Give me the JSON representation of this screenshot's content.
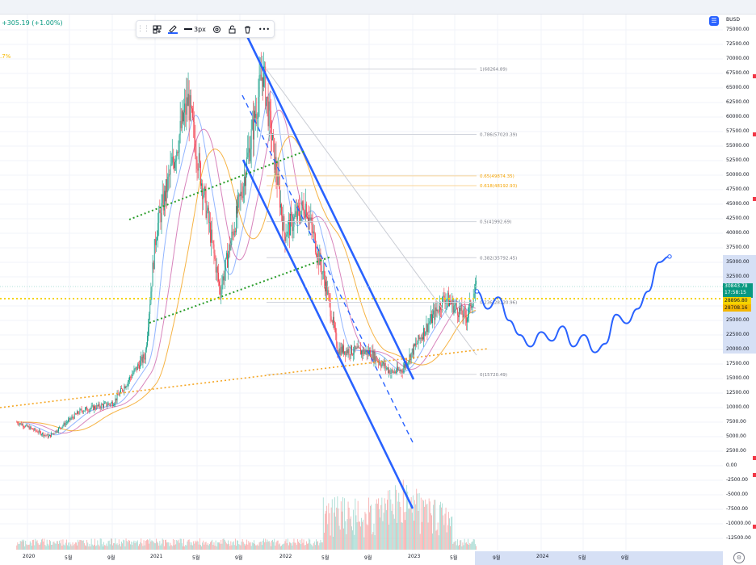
{
  "ticker": {
    "change": "+305.19 (+1.00%)",
    "pct_label": ".7%"
  },
  "toolbar": {
    "width_label": "3px",
    "items": [
      "drag-grip",
      "template-icon",
      "pen-color",
      "line-width",
      "settings",
      "lock",
      "trash",
      "more"
    ]
  },
  "price_axis": {
    "currency": "BUSD",
    "ticks": [
      "75000.00",
      "72500.00",
      "70000.00",
      "67500.00",
      "65000.00",
      "62500.00",
      "60000.00",
      "57500.00",
      "55000.00",
      "52500.00",
      "50000.00",
      "47500.00",
      "45000.00",
      "42500.00",
      "40000.00",
      "37500.00",
      "35000.00",
      "32500.00",
      "30000.00",
      "27500.00",
      "25000.00",
      "22500.00",
      "20000.00",
      "17500.00",
      "15000.00",
      "12500.00",
      "10000.00",
      "7500.00",
      "5000.00",
      "2500.00",
      "0.00",
      "-2500.00",
      "-5000.00",
      "-7500.00",
      "-10000.00",
      "-12500.00"
    ],
    "current_price": "30843.78",
    "countdown": "17:58:15",
    "badge1": "28896.80",
    "badge2": "28708.16"
  },
  "time_axis": {
    "labels": [
      {
        "text": "2020"
      },
      {
        "text": "5월"
      },
      {
        "text": "9월"
      },
      {
        "text": "2021"
      },
      {
        "text": "5월"
      },
      {
        "text": "9월"
      },
      {
        "text": "2022"
      },
      {
        "text": "5월"
      },
      {
        "text": "9월"
      },
      {
        "text": "2023"
      },
      {
        "text": "5월"
      },
      {
        "text": "9월"
      },
      {
        "text": "2024"
      },
      {
        "text": "5월"
      },
      {
        "text": "9월"
      }
    ]
  },
  "chart_data": {
    "type": "line",
    "title": "",
    "series": [
      {
        "name": "",
        "color": "#131722",
        "x": [
          "2019-12",
          "2020-03",
          "2020-06",
          "2020-09",
          "2020-12",
          "2021-01",
          "2021-04",
          "2021-07",
          "2021-09",
          "2021-11",
          "2022-01",
          "2022-03",
          "2022-05",
          "2022-06",
          "2022-09",
          "2022-11",
          "2022-12",
          "2023-02",
          "2023-04",
          "2023-06",
          "2023-07"
        ],
        "values": [
          7500,
          5000,
          9500,
          10800,
          19000,
          40000,
          63000,
          30000,
          47000,
          68000,
          40000,
          45000,
          30000,
          20000,
          19500,
          16000,
          16500,
          23000,
          29000,
          25500,
          30843
        ]
      }
    ],
    "fibonacci": [
      {
        "level": "1",
        "price": 68264.89,
        "label": "1(68264.89)",
        "color": "#787b86"
      },
      {
        "level": "0.786",
        "price": 57020.39,
        "label": "0.786(57020.39)",
        "color": "#787b86"
      },
      {
        "level": "0.65",
        "price": 49874.35,
        "label": "0.65(49874.35)",
        "color": "#f5a300"
      },
      {
        "level": "0.618",
        "price": 48192.93,
        "label": "0.618(48192.93)",
        "color": "#f5a300"
      },
      {
        "level": "0.5",
        "price": 41992.69,
        "label": "0.5(41992.69)",
        "color": "#787b86"
      },
      {
        "level": "0.382",
        "price": 35792.45,
        "label": "0.382(35792.45)",
        "color": "#787b86"
      },
      {
        "level": "0.236",
        "price": 28120.96,
        "label": "0.236(28120.96)",
        "color": "#787b86"
      },
      {
        "level": "0",
        "price": 15720.49,
        "label": "0(15720.49)",
        "color": "#787b86"
      }
    ],
    "ylim": [
      -12500,
      75000
    ],
    "projection": {
      "color": "#2962ff",
      "x": [
        "2023-07",
        "2023-08",
        "2023-09",
        "2023-10",
        "2023-11",
        "2023-12",
        "2024-01",
        "2024-02",
        "2024-03",
        "2024-04",
        "2024-05",
        "2024-06",
        "2024-07",
        "2024-08",
        "2024-09",
        "2024-10",
        "2024-11",
        "2024-12",
        "2025-01"
      ],
      "values": [
        30000,
        27000,
        29000,
        25000,
        22500,
        20500,
        23000,
        21500,
        24000,
        20500,
        22500,
        19500,
        21000,
        26000,
        24500,
        27000,
        30000,
        35000,
        36000
      ]
    },
    "colors": {
      "candle_up": "#089981",
      "candle_down": "#f23645",
      "trend": "#2962ff",
      "ma_green": "#2a9d2a",
      "ma_orange": "#f5a623",
      "ma_pink": "#d16fb0",
      "ma_blue": "#7fa8ff",
      "hline_yellow": "#f5d400"
    }
  }
}
